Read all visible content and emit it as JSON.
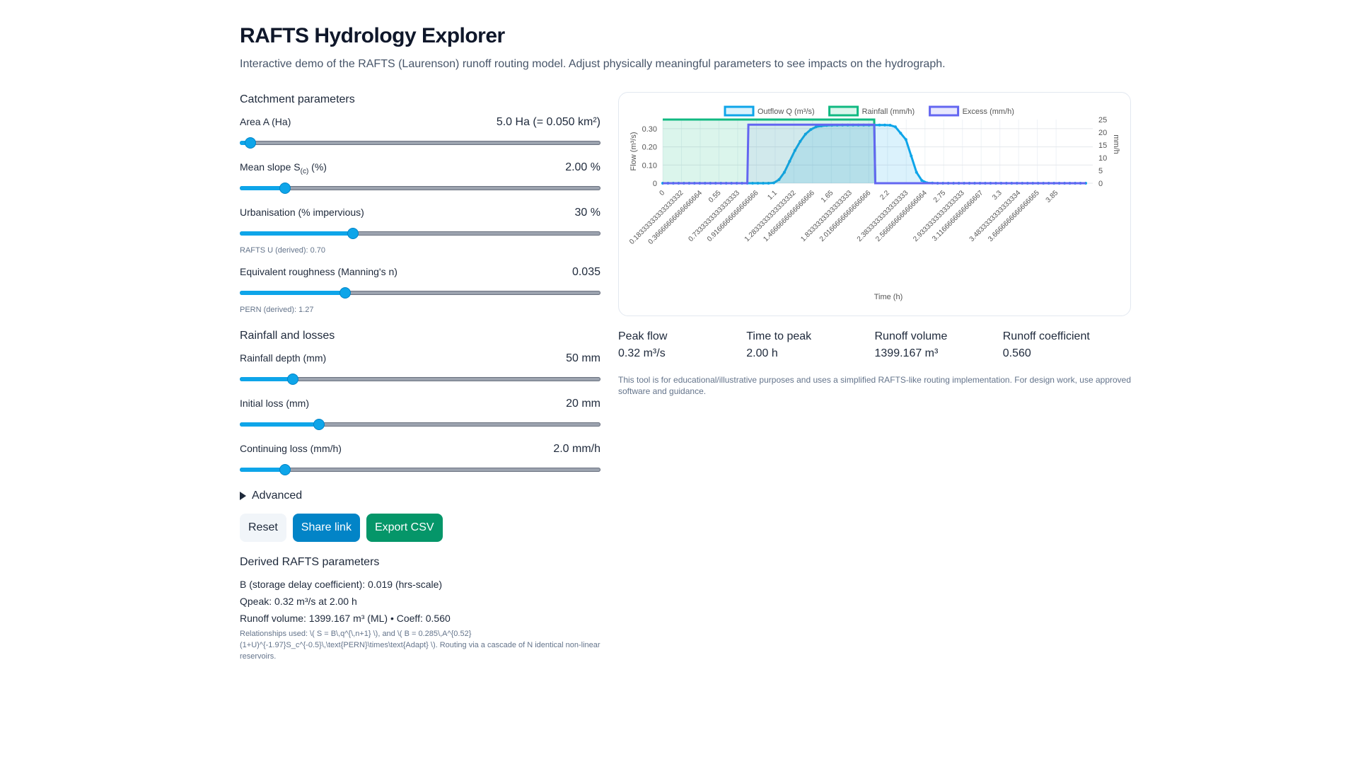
{
  "header": {
    "title": "RAFTS Hydrology Explorer",
    "subtitle": "Interactive demo of the RAFTS (Laurenson) runoff routing model. Adjust physically meaningful parameters to see impacts on the hydrograph."
  },
  "catchment": {
    "title": "Catchment parameters",
    "params": [
      {
        "label": "Area A (Ha)",
        "value": "5.0 Ha (= 0.050 km²)",
        "fraction": 0.015
      },
      {
        "label_main": "Mean slope S",
        "label_sub": "(c)",
        "label_tail": " (%)",
        "value": "2.00 %",
        "fraction": 0.113
      },
      {
        "label": "Urbanisation (% impervious)",
        "value": "30 %",
        "fraction": 0.307
      },
      {
        "label": "Equivalent roughness (Manning's n)",
        "value": "0.035",
        "fraction": 0.285
      }
    ],
    "rafts_u_note": "RAFTS U (derived): 0.70",
    "pern_note": "PERN (derived): 1.27"
  },
  "rainfall": {
    "title": "Rainfall and losses",
    "params": [
      {
        "label": "Rainfall depth (mm)",
        "value": "50 mm",
        "fraction": 0.135
      },
      {
        "label": "Initial loss (mm)",
        "value": "20 mm",
        "fraction": 0.21
      },
      {
        "label": "Continuing loss (mm/h)",
        "value": "2.0 mm/h",
        "fraction": 0.113
      }
    ]
  },
  "advanced_label": "Advanced",
  "buttons": {
    "reset": "Reset",
    "share": "Share link",
    "export": "Export CSV"
  },
  "derived": {
    "title": "Derived RAFTS parameters",
    "b_line": "B (storage delay coefficient): 0.019 (hrs-scale)",
    "qpeak_line": "Qpeak: 0.32 m³/s at 2.00 h",
    "volume_line": "Runoff volume: 1399.167 m³ (ML) • Coeff: 0.560",
    "relations": "Relationships used: \\( S = B\\,q^{\\,n+1} \\), and \\( B = 0.285\\,A^{0.52}(1+U)^{-1.97}S_c^{-0.5}\\,\\text{PERN}\\times\\text{Adapt} \\). Routing via a cascade of N identical non-linear reservoirs."
  },
  "stats": [
    {
      "label": "Peak flow",
      "value": "0.32 m³/s"
    },
    {
      "label": "Time to peak",
      "value": "2.00 h"
    },
    {
      "label": "Runoff volume",
      "value": "1399.167 m³"
    },
    {
      "label": "Runoff coefficient",
      "value": "0.560"
    }
  ],
  "disclaimer": "This tool is for educational/illustrative purposes and uses a simplified RAFTS-like routing implementation. For design work, use approved software and guidance.",
  "chart_data": {
    "type": "line",
    "xlabel": "Time (h)",
    "ylabel": "Flow (m³/s)",
    "y2label": "mm/h",
    "ylim": [
      0,
      0.35
    ],
    "y2lim": [
      0,
      25
    ],
    "yticks": [
      "0",
      "0.10",
      "0.20",
      "0.30"
    ],
    "y2ticks": [
      "0",
      "5",
      "10",
      "15",
      "20",
      "25"
    ],
    "xticks": [
      "0",
      "0.18333333333333332",
      "0.36666666666666664",
      "0.55",
      "0.7333333333333333",
      "0.9166666666666666",
      "1.1",
      "1.2833333333333332",
      "1.4666666666666666",
      "1.65",
      "1.8333333333333333",
      "2.0166666666666666",
      "2.2",
      "2.3833333333333333",
      "2.5666666666666664",
      "2.75",
      "2.9333333333333333",
      "3.1166666666666667",
      "3.3",
      "3.4833333333333334",
      "3.6666666666666665",
      "3.85"
    ],
    "xrange": [
      0,
      4.0
    ],
    "legend_position": "top",
    "colors": {
      "outflow": "#0ea5e9",
      "rainfall": "#10b981",
      "excess": "#6366f1"
    },
    "series": [
      {
        "name": "Outflow Q (m³/s)",
        "axis": "left",
        "x": [
          0,
          0.25,
          0.5,
          0.75,
          1.0,
          1.05,
          1.1,
          1.15,
          1.2,
          1.25,
          1.3,
          1.35,
          1.4,
          1.45,
          1.5,
          1.55,
          1.6,
          1.7,
          1.8,
          1.9,
          2.0,
          2.1,
          2.15,
          2.2,
          2.3,
          2.35,
          2.4,
          2.45,
          2.5,
          2.6,
          2.8,
          3.0,
          3.2,
          3.4,
          3.6,
          3.8,
          4.0
        ],
        "values": [
          0,
          0,
          0,
          0,
          0,
          0.002,
          0.02,
          0.06,
          0.12,
          0.18,
          0.23,
          0.27,
          0.295,
          0.31,
          0.315,
          0.318,
          0.319,
          0.32,
          0.32,
          0.32,
          0.32,
          0.32,
          0.319,
          0.31,
          0.24,
          0.15,
          0.06,
          0.015,
          0.002,
          0,
          0,
          0,
          0,
          0,
          0,
          0,
          0
        ]
      },
      {
        "name": "Rainfall (mm/h)",
        "axis": "right",
        "x": [
          0,
          2.0,
          2.0,
          2.01,
          4.0
        ],
        "values": [
          25,
          25,
          25,
          0,
          0
        ]
      },
      {
        "name": "Excess (mm/h)",
        "axis": "right",
        "x": [
          0,
          0.8,
          0.81,
          2.0,
          2.01,
          4.0
        ],
        "values": [
          0,
          0,
          23,
          23,
          0,
          0
        ]
      }
    ]
  }
}
